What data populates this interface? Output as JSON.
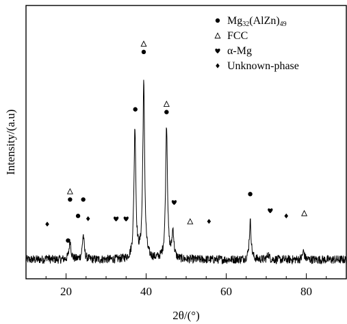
{
  "chart_data": {
    "type": "line",
    "xlabel": "2θ/(°)",
    "ylabel": "Intensity/(a.u)",
    "xlim": [
      10,
      90
    ],
    "ylim": [
      0,
      100
    ],
    "x_ticks": [
      20,
      40,
      60,
      80
    ],
    "y_ticks": [],
    "grid": false,
    "legend_position": "top-right",
    "legend": [
      {
        "marker": "circle",
        "label_main": "Mg",
        "label_sub": "32",
        "label_rest": "(AlZn)",
        "label_sub2": "49"
      },
      {
        "marker": "triangle",
        "label": "FCC"
      },
      {
        "marker": "heart",
        "label": "α-Mg"
      },
      {
        "marker": "diamond",
        "label": "Unknown-phase"
      }
    ],
    "series": [
      {
        "baseline": 7,
        "peaks": [
          {
            "x": 15.3,
            "y": 8
          },
          {
            "x": 21.0,
            "y": 14
          },
          {
            "x": 24.3,
            "y": 16
          },
          {
            "x": 37.2,
            "y": 55
          },
          {
            "x": 39.4,
            "y": 71
          },
          {
            "x": 45.1,
            "y": 56
          },
          {
            "x": 46.7,
            "y": 17
          },
          {
            "x": 66.0,
            "y": 21
          },
          {
            "x": 70.5,
            "y": 9
          },
          {
            "x": 79.3,
            "y": 10
          }
        ]
      }
    ],
    "markers": [
      {
        "type": "diamond",
        "x": 15.3,
        "y": 20
      },
      {
        "type": "circle",
        "x": 20.5,
        "y": 14
      },
      {
        "type": "circle",
        "x": 21.0,
        "y": 29
      },
      {
        "type": "triangle",
        "x": 21.0,
        "y": 32
      },
      {
        "type": "circle",
        "x": 23.0,
        "y": 23
      },
      {
        "type": "circle",
        "x": 24.3,
        "y": 29
      },
      {
        "type": "diamond",
        "x": 25.5,
        "y": 22
      },
      {
        "type": "heart",
        "x": 32.5,
        "y": 22
      },
      {
        "type": "heart",
        "x": 35.0,
        "y": 22
      },
      {
        "type": "circle",
        "x": 37.3,
        "y": 62
      },
      {
        "type": "circle",
        "x": 39.4,
        "y": 83
      },
      {
        "type": "triangle",
        "x": 39.4,
        "y": 86
      },
      {
        "type": "circle",
        "x": 45.1,
        "y": 61
      },
      {
        "type": "triangle",
        "x": 45.1,
        "y": 64
      },
      {
        "type": "heart",
        "x": 47.0,
        "y": 28
      },
      {
        "type": "triangle",
        "x": 51.0,
        "y": 21
      },
      {
        "type": "diamond",
        "x": 55.7,
        "y": 21
      },
      {
        "type": "circle",
        "x": 66.0,
        "y": 31
      },
      {
        "type": "heart",
        "x": 71.0,
        "y": 25
      },
      {
        "type": "diamond",
        "x": 75.0,
        "y": 23
      },
      {
        "type": "triangle",
        "x": 79.5,
        "y": 24
      }
    ]
  }
}
